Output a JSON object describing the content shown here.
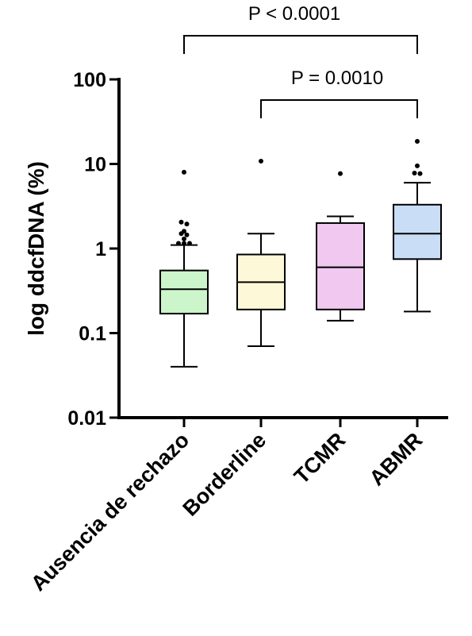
{
  "chart_data": {
    "type": "box",
    "title": "",
    "xlabel": "",
    "ylabel": "log ddcfDNA (%)",
    "yscale": "log",
    "ylim": [
      0.01,
      100
    ],
    "yticks": [
      {
        "value": 100,
        "label": "100"
      },
      {
        "value": 10,
        "label": "10"
      },
      {
        "value": 1,
        "label": "1"
      },
      {
        "value": 0.1,
        "label": "0.1"
      },
      {
        "value": 0.01,
        "label": "0.01"
      }
    ],
    "categories": [
      "Ausencia de rechazo",
      "Borderline",
      "TCMR",
      "ABMR"
    ],
    "groups": [
      {
        "name": "Ausencia de rechazo",
        "color": "#ccf5cc",
        "whisker_low": 0.04,
        "q1": 0.17,
        "median": 0.33,
        "q3": 0.55,
        "whisker_high": 1.1,
        "outliers": [
          8.0,
          2.05,
          1.95,
          1.6,
          1.5,
          1.45,
          1.3,
          1.15,
          1.15,
          1.15
        ]
      },
      {
        "name": "Borderline",
        "color": "#fdf8d8",
        "whisker_low": 0.07,
        "q1": 0.19,
        "median": 0.4,
        "q3": 0.85,
        "whisker_high": 1.5,
        "outliers": [
          10.8
        ]
      },
      {
        "name": "TCMR",
        "color": "#f0c8f0",
        "whisker_low": 0.14,
        "q1": 0.19,
        "median": 0.6,
        "q3": 2.0,
        "whisker_high": 2.4,
        "outliers": [
          7.7
        ]
      },
      {
        "name": "ABMR",
        "color": "#c9ddf7",
        "whisker_low": 0.18,
        "q1": 0.75,
        "median": 1.5,
        "q3": 3.3,
        "whisker_high": 6.0,
        "outliers": [
          18.5,
          9.5,
          7.8,
          7.7
        ]
      }
    ],
    "comparisons": [
      {
        "from": "Ausencia de rechazo",
        "to": "ABMR",
        "label": "P < 0.0001"
      },
      {
        "from": "Borderline",
        "to": "ABMR",
        "label": "P = 0.0010"
      }
    ],
    "grid": false,
    "legend": "none"
  }
}
